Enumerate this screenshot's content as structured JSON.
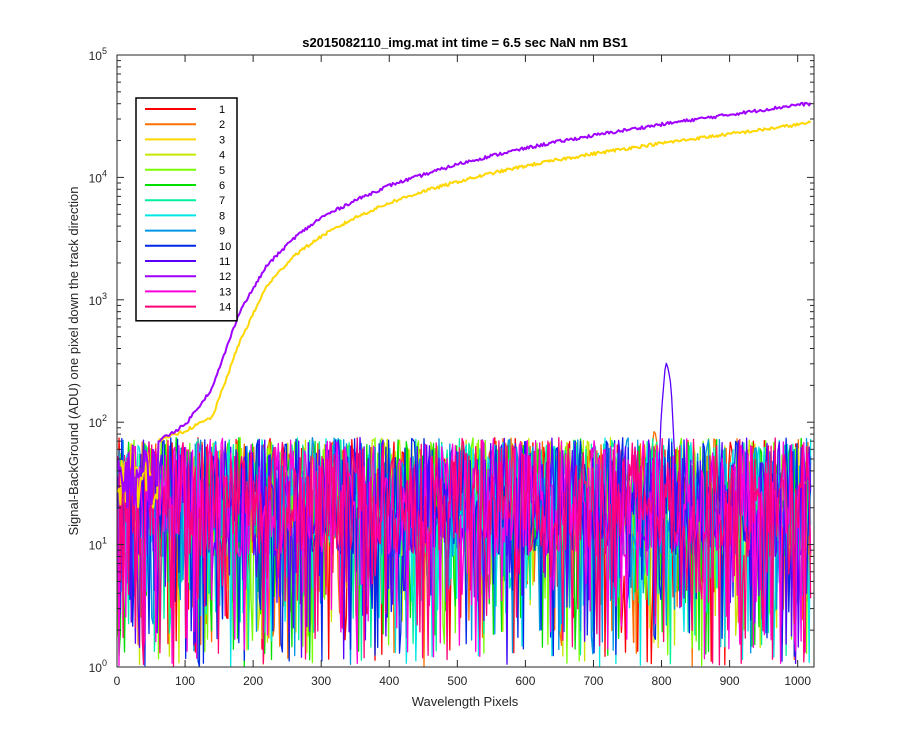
{
  "chart_data": {
    "type": "line",
    "title": "s2015082110_img.mat int time = 6.5 sec  NaN nm BS1",
    "xlabel": "Wavelength Pixels",
    "ylabel": "Signal-BackGround (ADU) one pixel down the track direction",
    "xlim": [
      0,
      1024
    ],
    "ylim": [
      1,
      100000
    ],
    "yscale": "log",
    "x_ticks": [
      0,
      100,
      200,
      300,
      400,
      500,
      600,
      700,
      800,
      900,
      1000
    ],
    "y_ticks": [
      1,
      10,
      100,
      1000,
      10000,
      100000
    ],
    "y_tick_labels": [
      {
        "base": "10",
        "exp": "0"
      },
      {
        "base": "10",
        "exp": "1"
      },
      {
        "base": "10",
        "exp": "2"
      },
      {
        "base": "10",
        "exp": "3"
      },
      {
        "base": "10",
        "exp": "4"
      },
      {
        "base": "10",
        "exp": "5"
      }
    ],
    "grid": false,
    "legend_position": "top-left",
    "series": [
      {
        "name": "1",
        "color": "#ff0000",
        "kind": "noise",
        "peak": null
      },
      {
        "name": "2",
        "color": "#ff7000",
        "kind": "noise",
        "peak": {
          "x": 790,
          "y": 80
        }
      },
      {
        "name": "3",
        "color": "#ffd700",
        "kind": "growth",
        "x": [
          60,
          100,
          140,
          180,
          220,
          260,
          300,
          350,
          400,
          450,
          500,
          550,
          600,
          650,
          700,
          750,
          800,
          850,
          900,
          950,
          1000,
          1020
        ],
        "y": [
          70,
          85,
          110,
          450,
          1300,
          2300,
          3300,
          4700,
          6200,
          7700,
          9200,
          10800,
          12400,
          14000,
          15600,
          17300,
          19000,
          20800,
          22600,
          24600,
          27000,
          28000
        ]
      },
      {
        "name": "4",
        "color": "#c8e600",
        "kind": "noise",
        "peak": null
      },
      {
        "name": "5",
        "color": "#78ff00",
        "kind": "noise",
        "peak": null
      },
      {
        "name": "6",
        "color": "#00e000",
        "kind": "noise",
        "peak": null
      },
      {
        "name": "7",
        "color": "#00f0a0",
        "kind": "noise",
        "peak": null
      },
      {
        "name": "8",
        "color": "#00e6e6",
        "kind": "noise",
        "peak": null
      },
      {
        "name": "9",
        "color": "#0096e6",
        "kind": "noise",
        "peak": null
      },
      {
        "name": "10",
        "color": "#0028e6",
        "kind": "noise",
        "peak": null
      },
      {
        "name": "11",
        "color": "#5a00ff",
        "kind": "noise",
        "peak": {
          "x": 808,
          "y": 300
        }
      },
      {
        "name": "12",
        "color": "#a000ff",
        "kind": "growth",
        "x": [
          60,
          100,
          140,
          180,
          220,
          260,
          300,
          350,
          400,
          450,
          500,
          550,
          600,
          650,
          700,
          750,
          800,
          850,
          900,
          950,
          1000,
          1020
        ],
        "y": [
          70,
          95,
          190,
          800,
          1900,
          3200,
          4700,
          6500,
          8600,
          10500,
          12800,
          15000,
          17300,
          19700,
          22000,
          24500,
          27100,
          29800,
          32600,
          35700,
          39300,
          40000
        ]
      },
      {
        "name": "13",
        "color": "#ff00dc",
        "kind": "noise",
        "peak": null
      },
      {
        "name": "14",
        "color": "#ff0078",
        "kind": "noise",
        "peak": null
      }
    ]
  }
}
